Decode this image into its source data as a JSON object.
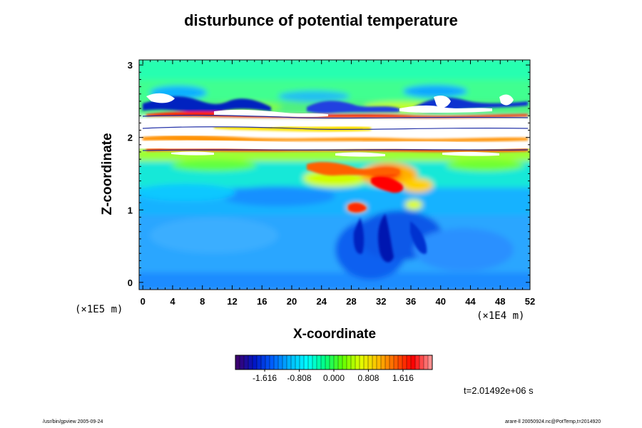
{
  "chart_data": {
    "type": "heatmap",
    "title": "disturbunce of potential temperature",
    "xlabel": "X-coordinate",
    "ylabel": "Z-coordinate",
    "x_unit": "(×1E4 m)",
    "y_unit": "(×1E5 m)",
    "xlim": [
      -0.5,
      52
    ],
    "ylim": [
      -0.1,
      3.07
    ],
    "x_ticks": [
      0,
      4,
      8,
      12,
      16,
      20,
      24,
      28,
      32,
      36,
      40,
      44,
      48,
      52
    ],
    "x_tick_labels": [
      "0",
      "4",
      "8",
      "12",
      "16",
      "20",
      "24",
      "28",
      "32",
      "36",
      "40",
      "44",
      "48",
      "52"
    ],
    "y_ticks": [
      0,
      1,
      2,
      3
    ],
    "y_tick_labels": [
      "0",
      "1",
      "2",
      "3"
    ],
    "colorbar": {
      "range": [
        -2.3,
        2.3
      ],
      "ticks": [
        -1.616,
        -0.808,
        0.0,
        0.808,
        1.616
      ],
      "tick_labels": [
        "-1.616",
        "-0.808",
        "0.000",
        "0.808",
        "1.616"
      ],
      "colors": [
        "#3a0070",
        "#0018c8",
        "#0060ff",
        "#00b8ff",
        "#00ffff",
        "#00ff80",
        "#60ff00",
        "#e0ff00",
        "#ffc000",
        "#ff6000",
        "#ff0000",
        "#ff9090"
      ]
    },
    "time_label": "t=2.01492e+06 s"
  },
  "footer": {
    "left": "/usr/bin/gpview 2005-09-24",
    "right": "arare-ll 20050924.nc@PotTemp,t=2014920"
  }
}
